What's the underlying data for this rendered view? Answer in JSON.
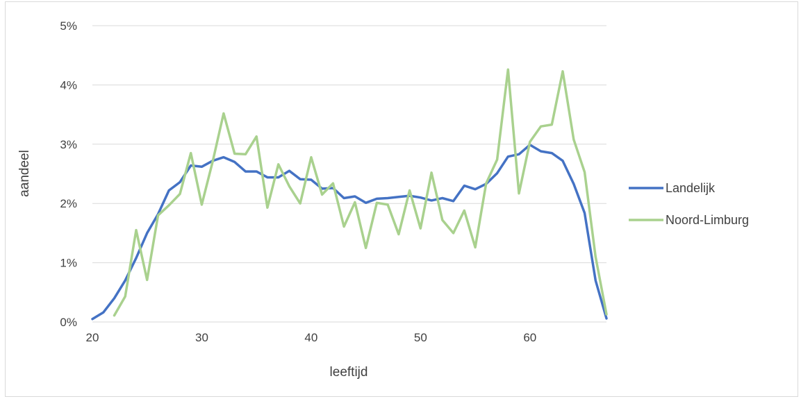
{
  "chart_data": {
    "type": "line",
    "title": "",
    "xlabel": "leeftijd",
    "ylabel": "aandeel",
    "xlim": [
      20,
      67
    ],
    "ylim": [
      0,
      0.05
    ],
    "x_ticks": [
      20,
      30,
      40,
      50,
      60
    ],
    "y_ticks": [
      0,
      0.01,
      0.02,
      0.03,
      0.04,
      0.05
    ],
    "x_tick_labels": [
      "20",
      "30",
      "40",
      "50",
      "60"
    ],
    "y_tick_labels": [
      "0%",
      "1%",
      "2%",
      "3%",
      "4%",
      "5%"
    ],
    "grid": "horizontal",
    "legend_position": "right",
    "series": [
      {
        "name": "Landelijk",
        "color": "#4472c4",
        "x": [
          20,
          21,
          22,
          23,
          24,
          25,
          26,
          27,
          28,
          29,
          30,
          31,
          32,
          33,
          34,
          35,
          36,
          37,
          38,
          39,
          40,
          41,
          42,
          43,
          44,
          45,
          46,
          47,
          48,
          49,
          50,
          51,
          52,
          53,
          54,
          55,
          56,
          57,
          58,
          59,
          60,
          61,
          62,
          63,
          64,
          65,
          66,
          67
        ],
        "values": [
          0.0005,
          0.0016,
          0.004,
          0.007,
          0.0108,
          0.015,
          0.0182,
          0.0222,
          0.0236,
          0.0264,
          0.0262,
          0.0272,
          0.0278,
          0.027,
          0.0254,
          0.0254,
          0.0244,
          0.0244,
          0.0255,
          0.0241,
          0.024,
          0.0225,
          0.0226,
          0.0209,
          0.0212,
          0.0201,
          0.0208,
          0.0209,
          0.0211,
          0.0213,
          0.021,
          0.0205,
          0.0209,
          0.0204,
          0.023,
          0.0224,
          0.0233,
          0.0251,
          0.0279,
          0.0283,
          0.0299,
          0.0288,
          0.0285,
          0.0272,
          0.0233,
          0.0184,
          0.007,
          0.0006
        ]
      },
      {
        "name": "Noord-Limburg",
        "color": "#a9d18e",
        "x": [
          22,
          23,
          24,
          25,
          26,
          27,
          28,
          29,
          30,
          31,
          32,
          33,
          34,
          35,
          36,
          37,
          38,
          39,
          40,
          41,
          42,
          43,
          44,
          45,
          46,
          47,
          48,
          49,
          50,
          51,
          52,
          53,
          54,
          55,
          56,
          57,
          58,
          59,
          60,
          61,
          62,
          63,
          64,
          65,
          66,
          67
        ],
        "values": [
          0.0011,
          0.0043,
          0.0155,
          0.0071,
          0.018,
          0.0197,
          0.0216,
          0.0285,
          0.0198,
          0.0271,
          0.0352,
          0.0284,
          0.0283,
          0.0313,
          0.0193,
          0.0266,
          0.0229,
          0.02,
          0.0278,
          0.0215,
          0.0234,
          0.0161,
          0.0202,
          0.0125,
          0.0201,
          0.0198,
          0.0148,
          0.0222,
          0.0158,
          0.0252,
          0.0172,
          0.015,
          0.0188,
          0.0126,
          0.0234,
          0.0274,
          0.0426,
          0.0217,
          0.0304,
          0.033,
          0.0333,
          0.0423,
          0.0308,
          0.0253,
          0.011,
          0.0013
        ]
      }
    ]
  }
}
